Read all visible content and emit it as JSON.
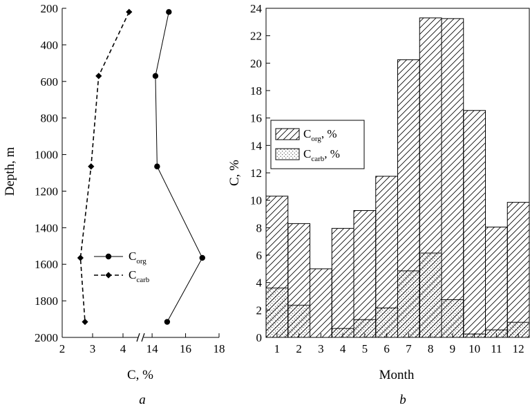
{
  "chart_data": [
    {
      "id": "a",
      "type": "line",
      "panel_label": "a",
      "xlabel": "C, %",
      "ylabel": "Depth, m",
      "y_inverted": true,
      "ylim": [
        200,
        2000
      ],
      "yticks": [
        200,
        400,
        600,
        800,
        1000,
        1200,
        1400,
        1600,
        1800,
        2000
      ],
      "x_axis_break": true,
      "x_segments": [
        {
          "range": [
            2,
            4.5
          ],
          "ticks": [
            2,
            3,
            4
          ]
        },
        {
          "range": [
            13.5,
            18
          ],
          "ticks": [
            14,
            16,
            18
          ]
        }
      ],
      "series": [
        {
          "name": "C",
          "sub": "org",
          "style": "solid",
          "marker": "circle",
          "points": [
            [
              15.0,
              220
            ],
            [
              14.2,
              570
            ],
            [
              14.3,
              1065
            ],
            [
              17.0,
              1565
            ],
            [
              14.9,
              1915
            ]
          ]
        },
        {
          "name": "C",
          "sub": "carb",
          "style": "dashed",
          "marker": "diamond",
          "points": [
            [
              4.2,
              220
            ],
            [
              3.2,
              570
            ],
            [
              2.95,
              1065
            ],
            [
              2.6,
              1565
            ],
            [
              2.75,
              1915
            ]
          ]
        }
      ]
    },
    {
      "id": "b",
      "type": "bar",
      "stacked": false,
      "panel_label": "b",
      "xlabel": "Month",
      "ylabel": "C, %",
      "ylim": [
        0,
        24
      ],
      "yticks": [
        0,
        2,
        4,
        6,
        8,
        10,
        12,
        14,
        16,
        18,
        20,
        22,
        24
      ],
      "categories": [
        "1",
        "2",
        "3",
        "4",
        "5",
        "6",
        "7",
        "8",
        "9",
        "10",
        "11",
        "12"
      ],
      "series": [
        {
          "name": "C",
          "sub": "org",
          "suffix": ", %",
          "pattern": "hatch",
          "values": [
            10.3,
            8.3,
            5.0,
            7.95,
            9.25,
            11.75,
            20.25,
            23.3,
            23.25,
            16.55,
            8.05,
            9.85
          ]
        },
        {
          "name": "C",
          "sub": "carb",
          "suffix": ", %",
          "pattern": "dots",
          "values": [
            3.6,
            2.35,
            0.0,
            0.65,
            1.3,
            2.15,
            4.85,
            6.15,
            2.75,
            0.25,
            0.55,
            1.1
          ]
        }
      ]
    }
  ],
  "colors": {
    "ink": "#000000",
    "background": "#ffffff"
  }
}
